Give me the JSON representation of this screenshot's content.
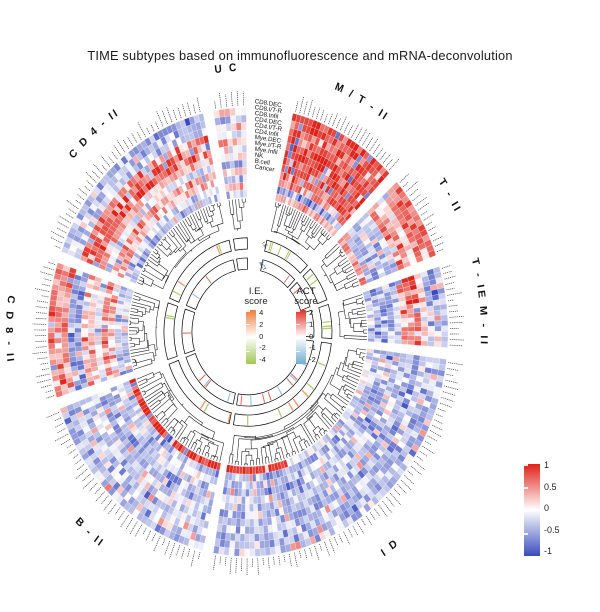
{
  "title": "TIME subtypes based on immunofluorescence and mRNA-deconvolution",
  "chart_data": {
    "type": "heatmap",
    "layout": "circular",
    "description": "Circular clustered heatmap (circos style): 8 TIME subtype sectors, 12 cell-feature rings, per-sector dendrograms, two inner annotation rings (I.E. and ACT scores).",
    "rows": [
      "CD8.DEC",
      "CD8.I/T-R",
      "CD8.Infil",
      "CD4.DEC",
      "CD4.I/T-R",
      "CD4.Infil",
      "Mye.DEC",
      "Mye.I/T-R",
      "Mye.Infil",
      "NK",
      "B.cell",
      "Cancer"
    ],
    "sectors": [
      {
        "name": "M/T-II",
        "label": "M / T - II",
        "start_deg": 13,
        "end_deg": 45,
        "samples": 26,
        "row_bias": [
          0.85,
          0.8,
          0.8,
          0.75,
          0.85,
          0.8,
          0.8,
          0.75,
          0.7,
          0.55,
          -0.55,
          0.35
        ]
      },
      {
        "name": "T-II",
        "label": "T - II",
        "start_deg": 48,
        "end_deg": 70,
        "samples": 15,
        "row_bias": [
          0.6,
          0.55,
          0.65,
          0.1,
          0.45,
          0.55,
          -0.25,
          -0.4,
          -0.3,
          -0.45,
          -0.5,
          0.55
        ]
      },
      {
        "name": "T-IE M-II",
        "label": "T - IE  M - II",
        "start_deg": 73,
        "end_deg": 94,
        "samples": 15,
        "row_bias": [
          -0.45,
          -0.5,
          -0.3,
          0.2,
          0.7,
          0.65,
          0.55,
          -0.3,
          -0.45,
          -0.55,
          -0.6,
          -0.4
        ]
      },
      {
        "name": "ID",
        "label": "I D",
        "start_deg": 97,
        "end_deg": 190,
        "samples": 62,
        "row_bias": [
          -0.4,
          -0.45,
          -0.4,
          -0.35,
          -0.45,
          -0.4,
          -0.3,
          -0.35,
          -0.45,
          -0.4,
          -0.45,
          -0.15
        ],
        "patches": [
          {
            "row": 11,
            "from": 0.68,
            "to": 1.0,
            "value": 0.9
          }
        ]
      },
      {
        "name": "B-II",
        "label": "B - II",
        "start_deg": 193,
        "end_deg": 250,
        "samples": 38,
        "row_bias": [
          -0.45,
          -0.4,
          -0.25,
          -0.4,
          -0.3,
          -0.15,
          -0.45,
          -0.4,
          -0.35,
          -0.25,
          -0.4,
          0.9
        ]
      },
      {
        "name": "CD8-II",
        "label": "C D 8 - II",
        "start_deg": 253,
        "end_deg": 288,
        "samples": 25,
        "row_bias": [
          0.55,
          0.5,
          0.6,
          -0.6,
          -0.55,
          0.35,
          0.3,
          -0.15,
          0.45,
          0.25,
          -0.3,
          -0.35
        ]
      },
      {
        "name": "CD4-II",
        "label": "C D 4 - II",
        "start_deg": 291,
        "end_deg": 347,
        "samples": 40,
        "row_bias": [
          -0.45,
          -0.4,
          -0.35,
          0.6,
          0.7,
          0.75,
          0.35,
          -0.15,
          0.45,
          0.3,
          -0.25,
          -0.4
        ]
      },
      {
        "name": "UC",
        "label": "U C",
        "start_deg": 350,
        "end_deg": 359.5,
        "samples": 6,
        "row_bias": [
          0.2,
          -0.4,
          0.3,
          -0.2,
          0.35,
          -0.1,
          0.25,
          -0.45,
          0.15,
          -0.3,
          0.35,
          -0.35
        ]
      }
    ],
    "heat_scale": {
      "min": -1,
      "max": 1,
      "pos_color": "#df2118",
      "neg_color": "#3a4cbd",
      "ticks": [
        "1",
        "0.5",
        "0",
        "-0.5",
        "-1"
      ]
    },
    "inner_rings": [
      {
        "label": "I.E.",
        "tick_colors": [
          "#f0874a",
          "#a5c85a"
        ]
      },
      {
        "label": "ACT",
        "tick_colors": [
          "#e05040",
          "#7fb2d8"
        ]
      }
    ],
    "ie_legend": {
      "title_line1": "I.E.",
      "title_line2": "score",
      "ticks": [
        "4",
        "2",
        "0",
        "-2",
        "-4"
      ],
      "top_color": "#ef7b3a",
      "mid_color": "#ffffff",
      "bottom_color": "#a3c652"
    },
    "act_legend": {
      "title_line1": "ACT",
      "title_line2": "score",
      "ticks": [
        "2",
        "1",
        "0",
        "-1",
        "-2"
      ],
      "top_color": "#e03127",
      "mid_color": "#ffffff",
      "bottom_color": "#74add1"
    }
  }
}
